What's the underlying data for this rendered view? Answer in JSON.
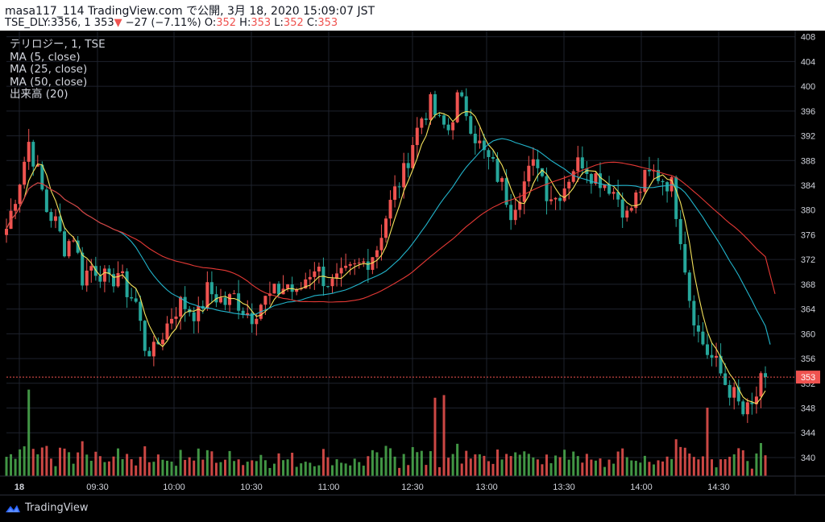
{
  "header": {
    "line1": "masa117_114 TradingView.com で公開, 3月 18, 2020 15:09:07 JST",
    "symbol": "TSE_DLY:3356, 1",
    "last": "353",
    "arrow": "▼",
    "change": "−27 (−7.11%)",
    "o_label": "O:",
    "o_value": "352",
    "h_label": "H:",
    "h_value": "353",
    "l_label": "L:",
    "l_value": "352",
    "c_label": "C:",
    "c_value": "353"
  },
  "legend": {
    "series": "テリロジー, 1, TSE",
    "ma5": "MA (5, close)",
    "ma25": "MA (25, close)",
    "ma50": "MA (50, close)",
    "volume": "出来高 (20)"
  },
  "footer": {
    "brand": "TradingView"
  },
  "colors": {
    "up": "#ef5350",
    "down": "#26a69a",
    "ma5": "#f5e35b",
    "ma25": "#22b5cc",
    "ma50": "#e53935",
    "volUp": "#4caf50",
    "volDown": "#ef5350",
    "lastLine": "#ef5350"
  },
  "chart_data": {
    "type": "candlestick",
    "symbol": "TSE_DLY:3356",
    "interval": "1",
    "last_price": 353,
    "ylim": [
      337,
      409
    ],
    "y_ticks": [
      340,
      344,
      348,
      352,
      356,
      360,
      364,
      368,
      372,
      376,
      380,
      384,
      388,
      392,
      396,
      400,
      404,
      408
    ],
    "x_ticks": [
      "18",
      "09:30",
      "10:00",
      "10:30",
      "11:00",
      "12:30",
      "13:00",
      "13:30",
      "14:00",
      "14:30"
    ],
    "price_path": [
      [
        0,
        377
      ],
      [
        3,
        385
      ],
      [
        5,
        391
      ],
      [
        7,
        386
      ],
      [
        9,
        380
      ],
      [
        11,
        378
      ],
      [
        13,
        374
      ],
      [
        15,
        376
      ],
      [
        17,
        369
      ],
      [
        19,
        371
      ],
      [
        21,
        370
      ],
      [
        23,
        368
      ],
      [
        25,
        370
      ],
      [
        27,
        367
      ],
      [
        29,
        365
      ],
      [
        31,
        358
      ],
      [
        33,
        357
      ],
      [
        35,
        360
      ],
      [
        37,
        363
      ],
      [
        39,
        365
      ],
      [
        41,
        364
      ],
      [
        43,
        363
      ],
      [
        45,
        367
      ],
      [
        47,
        366
      ],
      [
        49,
        365
      ],
      [
        51,
        366
      ],
      [
        53,
        364
      ],
      [
        55,
        363
      ],
      [
        57,
        365
      ],
      [
        59,
        366
      ],
      [
        61,
        367
      ],
      [
        63,
        368
      ],
      [
        65,
        366
      ],
      [
        67,
        369
      ],
      [
        69,
        371
      ],
      [
        71,
        369
      ],
      [
        73,
        368
      ],
      [
        75,
        369
      ],
      [
        77,
        370
      ],
      [
        79,
        371
      ],
      [
        81,
        372
      ],
      [
        83,
        374
      ],
      [
        85,
        379
      ],
      [
        87,
        383
      ],
      [
        89,
        386
      ],
      [
        91,
        391
      ],
      [
        93,
        395
      ],
      [
        95,
        397
      ],
      [
        97,
        394
      ],
      [
        99,
        393
      ],
      [
        101,
        398
      ],
      [
        103,
        396
      ],
      [
        105,
        392
      ],
      [
        107,
        389
      ],
      [
        109,
        387
      ],
      [
        111,
        384
      ],
      [
        113,
        380
      ],
      [
        115,
        383
      ],
      [
        117,
        386
      ],
      [
        119,
        388
      ],
      [
        121,
        383
      ],
      [
        123,
        382
      ],
      [
        125,
        384
      ],
      [
        127,
        387
      ],
      [
        129,
        388
      ],
      [
        131,
        386
      ],
      [
        133,
        385
      ],
      [
        135,
        384
      ],
      [
        137,
        382
      ],
      [
        139,
        379
      ],
      [
        141,
        382
      ],
      [
        143,
        385
      ],
      [
        145,
        386
      ],
      [
        147,
        385
      ],
      [
        149,
        384
      ],
      [
        151,
        376
      ],
      [
        153,
        366
      ],
      [
        155,
        360
      ],
      [
        157,
        357
      ],
      [
        159,
        355
      ],
      [
        161,
        352
      ],
      [
        163,
        350
      ],
      [
        165,
        347
      ],
      [
        167,
        348
      ],
      [
        169,
        352
      ],
      [
        170,
        353
      ]
    ],
    "moving_averages": [
      {
        "name": "MA (5, close)",
        "period": 5
      },
      {
        "name": "MA (25, close)",
        "period": 25
      },
      {
        "name": "MA (50, close)",
        "period": 50
      }
    ],
    "volume": {
      "period": 20
    }
  }
}
